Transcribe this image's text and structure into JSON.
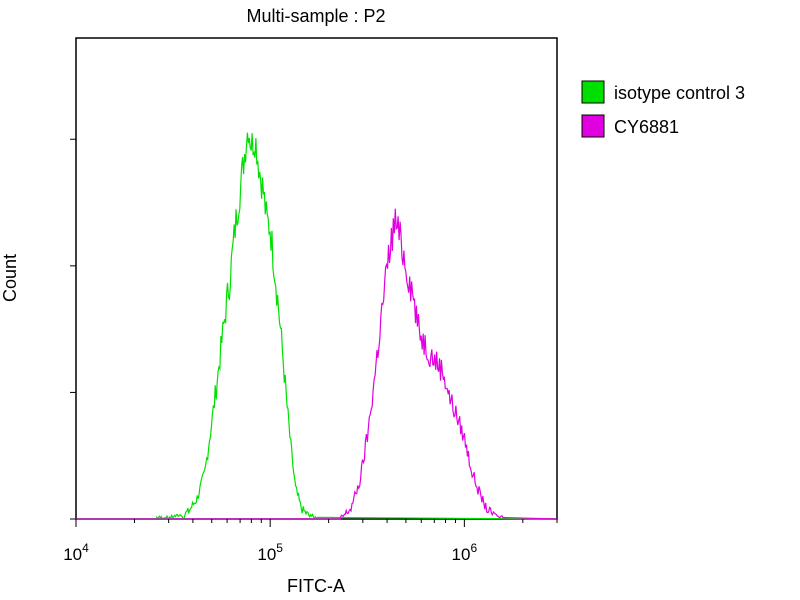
{
  "chart_data": {
    "type": "area",
    "title": "Multi-sample : P2",
    "xlabel": "FITC-A",
    "ylabel": "Count",
    "x_scale": "log",
    "xlim": [
      10000,
      3000000
    ],
    "ylim": [
      0,
      190
    ],
    "x_ticks": [
      {
        "value": 10000,
        "base": "10",
        "exp": "4"
      },
      {
        "value": 100000,
        "base": "10",
        "exp": "5"
      },
      {
        "value": 1000000,
        "base": "10",
        "exp": "6"
      }
    ],
    "y_ticks": [
      0,
      50,
      100,
      150
    ],
    "grid": false,
    "legend_position": "right",
    "series": [
      {
        "name": "isotype control 3",
        "color": "#00e000",
        "points": [
          [
            26000,
            0
          ],
          [
            30000,
            0
          ],
          [
            35000,
            1
          ],
          [
            38000,
            3
          ],
          [
            42000,
            8
          ],
          [
            46000,
            18
          ],
          [
            50000,
            38
          ],
          [
            54000,
            58
          ],
          [
            58000,
            78
          ],
          [
            62000,
            95
          ],
          [
            66000,
            115
          ],
          [
            70000,
            130
          ],
          [
            74000,
            145
          ],
          [
            77000,
            155
          ],
          [
            80000,
            148
          ],
          [
            84000,
            150
          ],
          [
            88000,
            138
          ],
          [
            92000,
            130
          ],
          [
            96000,
            118
          ],
          [
            100000,
            115
          ],
          [
            105000,
            100
          ],
          [
            110000,
            85
          ],
          [
            116000,
            65
          ],
          [
            122000,
            45
          ],
          [
            128000,
            28
          ],
          [
            135000,
            12
          ],
          [
            145000,
            4
          ],
          [
            160000,
            1
          ],
          [
            175000,
            0
          ]
        ]
      },
      {
        "name": "CY6881",
        "color": "#e000e0",
        "points": [
          [
            230000,
            0
          ],
          [
            260000,
            4
          ],
          [
            290000,
            15
          ],
          [
            320000,
            35
          ],
          [
            350000,
            60
          ],
          [
            380000,
            85
          ],
          [
            410000,
            105
          ],
          [
            440000,
            118
          ],
          [
            470000,
            110
          ],
          [
            500000,
            100
          ],
          [
            540000,
            90
          ],
          [
            580000,
            75
          ],
          [
            620000,
            70
          ],
          [
            670000,
            65
          ],
          [
            720000,
            62
          ],
          [
            780000,
            58
          ],
          [
            840000,
            48
          ],
          [
            900000,
            42
          ],
          [
            1000000,
            32
          ],
          [
            1100000,
            18
          ],
          [
            1200000,
            10
          ],
          [
            1300000,
            4
          ],
          [
            1450000,
            1
          ],
          [
            1600000,
            0
          ]
        ]
      }
    ]
  }
}
